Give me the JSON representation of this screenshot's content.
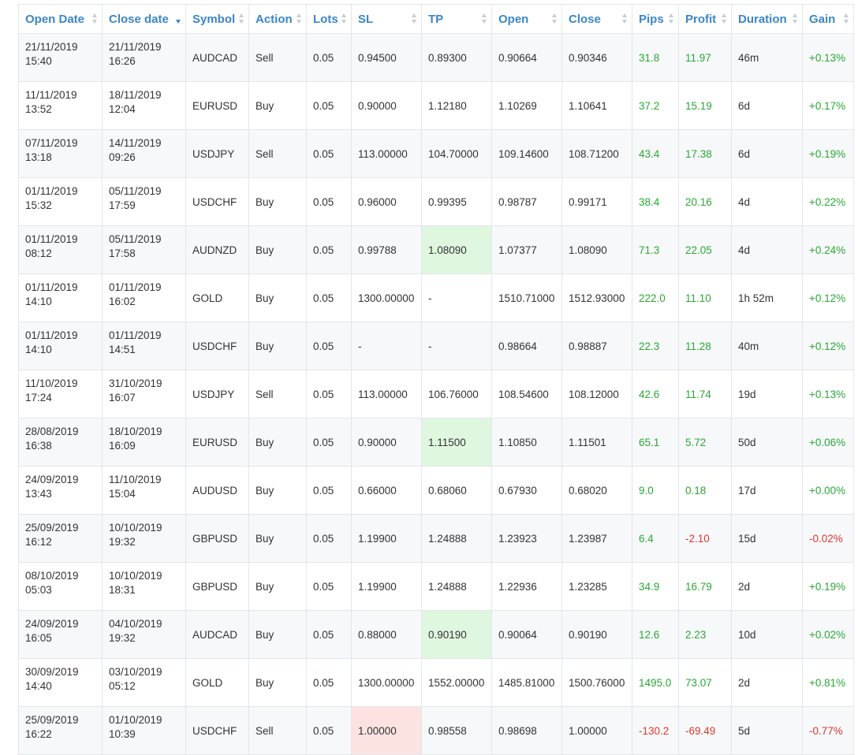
{
  "colors": {
    "header_text": "#3a86c8",
    "positive": "#2aa836",
    "negative": "#e2382f",
    "tp_hit_bg": "#dff7df",
    "sl_hit_bg": "#fde2e2"
  },
  "headers": [
    {
      "label": "Open Date",
      "sort": "none"
    },
    {
      "label": "Close date",
      "sort": "desc"
    },
    {
      "label": "Symbol",
      "sort": "none"
    },
    {
      "label": "Action",
      "sort": "none"
    },
    {
      "label": "Lots",
      "sort": "none"
    },
    {
      "label": "SL",
      "sort": "none"
    },
    {
      "label": "TP",
      "sort": "none"
    },
    {
      "label": "Open",
      "sort": "none"
    },
    {
      "label": "Close",
      "sort": "none"
    },
    {
      "label": "Pips",
      "sort": "none"
    },
    {
      "label": "Profit",
      "sort": "none"
    },
    {
      "label": "Duration",
      "sort": "none"
    },
    {
      "label": "Gain",
      "sort": "none"
    }
  ],
  "rows": [
    {
      "open_date": "21/11/2019",
      "open_time": "15:40",
      "close_date": "21/11/2019",
      "close_time": "16:26",
      "symbol": "AUDCAD",
      "action": "Sell",
      "lots": "0.05",
      "sl": "0.94500",
      "tp": "0.89300",
      "open": "0.90664",
      "close": "0.90346",
      "pips": "31.8",
      "profit": "11.97",
      "duration": "46m",
      "gain": "+0.13%",
      "hl": ""
    },
    {
      "open_date": "11/11/2019",
      "open_time": "13:52",
      "close_date": "18/11/2019",
      "close_time": "12:04",
      "symbol": "EURUSD",
      "action": "Buy",
      "lots": "0.05",
      "sl": "0.90000",
      "tp": "1.12180",
      "open": "1.10269",
      "close": "1.10641",
      "pips": "37.2",
      "profit": "15.19",
      "duration": "6d",
      "gain": "+0.17%",
      "hl": ""
    },
    {
      "open_date": "07/11/2019",
      "open_time": "13:18",
      "close_date": "14/11/2019",
      "close_time": "09:26",
      "symbol": "USDJPY",
      "action": "Sell",
      "lots": "0.05",
      "sl": "113.00000",
      "tp": "104.70000",
      "open": "109.14600",
      "close": "108.71200",
      "pips": "43.4",
      "profit": "17.38",
      "duration": "6d",
      "gain": "+0.19%",
      "hl": ""
    },
    {
      "open_date": "01/11/2019",
      "open_time": "15:32",
      "close_date": "05/11/2019",
      "close_time": "17:59",
      "symbol": "USDCHF",
      "action": "Buy",
      "lots": "0.05",
      "sl": "0.96000",
      "tp": "0.99395",
      "open": "0.98787",
      "close": "0.99171",
      "pips": "38.4",
      "profit": "20.16",
      "duration": "4d",
      "gain": "+0.22%",
      "hl": ""
    },
    {
      "open_date": "01/11/2019",
      "open_time": "08:12",
      "close_date": "05/11/2019",
      "close_time": "17:58",
      "symbol": "AUDNZD",
      "action": "Buy",
      "lots": "0.05",
      "sl": "0.99788",
      "tp": "1.08090",
      "open": "1.07377",
      "close": "1.08090",
      "pips": "71.3",
      "profit": "22.05",
      "duration": "4d",
      "gain": "+0.24%",
      "hl": "tp"
    },
    {
      "open_date": "01/11/2019",
      "open_time": "14:10",
      "close_date": "01/11/2019",
      "close_time": "16:02",
      "symbol": "GOLD",
      "action": "Buy",
      "lots": "0.05",
      "sl": "1300.00000",
      "tp": "-",
      "open": "1510.71000",
      "close": "1512.93000",
      "pips": "222.0",
      "profit": "11.10",
      "duration": "1h 52m",
      "gain": "+0.12%",
      "hl": ""
    },
    {
      "open_date": "01/11/2019",
      "open_time": "14:10",
      "close_date": "01/11/2019",
      "close_time": "14:51",
      "symbol": "USDCHF",
      "action": "Buy",
      "lots": "0.05",
      "sl": "-",
      "tp": "-",
      "open": "0.98664",
      "close": "0.98887",
      "pips": "22.3",
      "profit": "11.28",
      "duration": "40m",
      "gain": "+0.12%",
      "hl": ""
    },
    {
      "open_date": "11/10/2019",
      "open_time": "17:24",
      "close_date": "31/10/2019",
      "close_time": "16:07",
      "symbol": "USDJPY",
      "action": "Sell",
      "lots": "0.05",
      "sl": "113.00000",
      "tp": "106.76000",
      "open": "108.54600",
      "close": "108.12000",
      "pips": "42.6",
      "profit": "11.74",
      "duration": "19d",
      "gain": "+0.13%",
      "hl": ""
    },
    {
      "open_date": "28/08/2019",
      "open_time": "16:38",
      "close_date": "18/10/2019",
      "close_time": "16:09",
      "symbol": "EURUSD",
      "action": "Buy",
      "lots": "0.05",
      "sl": "0.90000",
      "tp": "1.11500",
      "open": "1.10850",
      "close": "1.11501",
      "pips": "65.1",
      "profit": "5.72",
      "duration": "50d",
      "gain": "+0.06%",
      "hl": "tp"
    },
    {
      "open_date": "24/09/2019",
      "open_time": "13:43",
      "close_date": "11/10/2019",
      "close_time": "15:04",
      "symbol": "AUDUSD",
      "action": "Buy",
      "lots": "0.05",
      "sl": "0.66000",
      "tp": "0.68060",
      "open": "0.67930",
      "close": "0.68020",
      "pips": "9.0",
      "profit": "0.18",
      "duration": "17d",
      "gain": "+0.00%",
      "hl": ""
    },
    {
      "open_date": "25/09/2019",
      "open_time": "16:12",
      "close_date": "10/10/2019",
      "close_time": "19:32",
      "symbol": "GBPUSD",
      "action": "Buy",
      "lots": "0.05",
      "sl": "1.19900",
      "tp": "1.24888",
      "open": "1.23923",
      "close": "1.23987",
      "pips": "6.4",
      "profit": "-2.10",
      "duration": "15d",
      "gain": "-0.02%",
      "hl": ""
    },
    {
      "open_date": "08/10/2019",
      "open_time": "05:03",
      "close_date": "10/10/2019",
      "close_time": "18:31",
      "symbol": "GBPUSD",
      "action": "Buy",
      "lots": "0.05",
      "sl": "1.19900",
      "tp": "1.24888",
      "open": "1.22936",
      "close": "1.23285",
      "pips": "34.9",
      "profit": "16.79",
      "duration": "2d",
      "gain": "+0.19%",
      "hl": ""
    },
    {
      "open_date": "24/09/2019",
      "open_time": "16:05",
      "close_date": "04/10/2019",
      "close_time": "19:32",
      "symbol": "AUDCAD",
      "action": "Buy",
      "lots": "0.05",
      "sl": "0.88000",
      "tp": "0.90190",
      "open": "0.90064",
      "close": "0.90190",
      "pips": "12.6",
      "profit": "2.23",
      "duration": "10d",
      "gain": "+0.02%",
      "hl": "tp"
    },
    {
      "open_date": "30/09/2019",
      "open_time": "14:40",
      "close_date": "03/10/2019",
      "close_time": "05:12",
      "symbol": "GOLD",
      "action": "Buy",
      "lots": "0.05",
      "sl": "1300.00000",
      "tp": "1552.00000",
      "open": "1485.81000",
      "close": "1500.76000",
      "pips": "1495.0",
      "profit": "73.07",
      "duration": "2d",
      "gain": "+0.81%",
      "hl": ""
    },
    {
      "open_date": "25/09/2019",
      "open_time": "16:22",
      "close_date": "01/10/2019",
      "close_time": "10:39",
      "symbol": "USDCHF",
      "action": "Sell",
      "lots": "0.05",
      "sl": "1.00000",
      "tp": "0.98558",
      "open": "0.98698",
      "close": "1.00000",
      "pips": "-130.2",
      "profit": "-69.49",
      "duration": "5d",
      "gain": "-0.77%",
      "hl": "sl"
    }
  ]
}
